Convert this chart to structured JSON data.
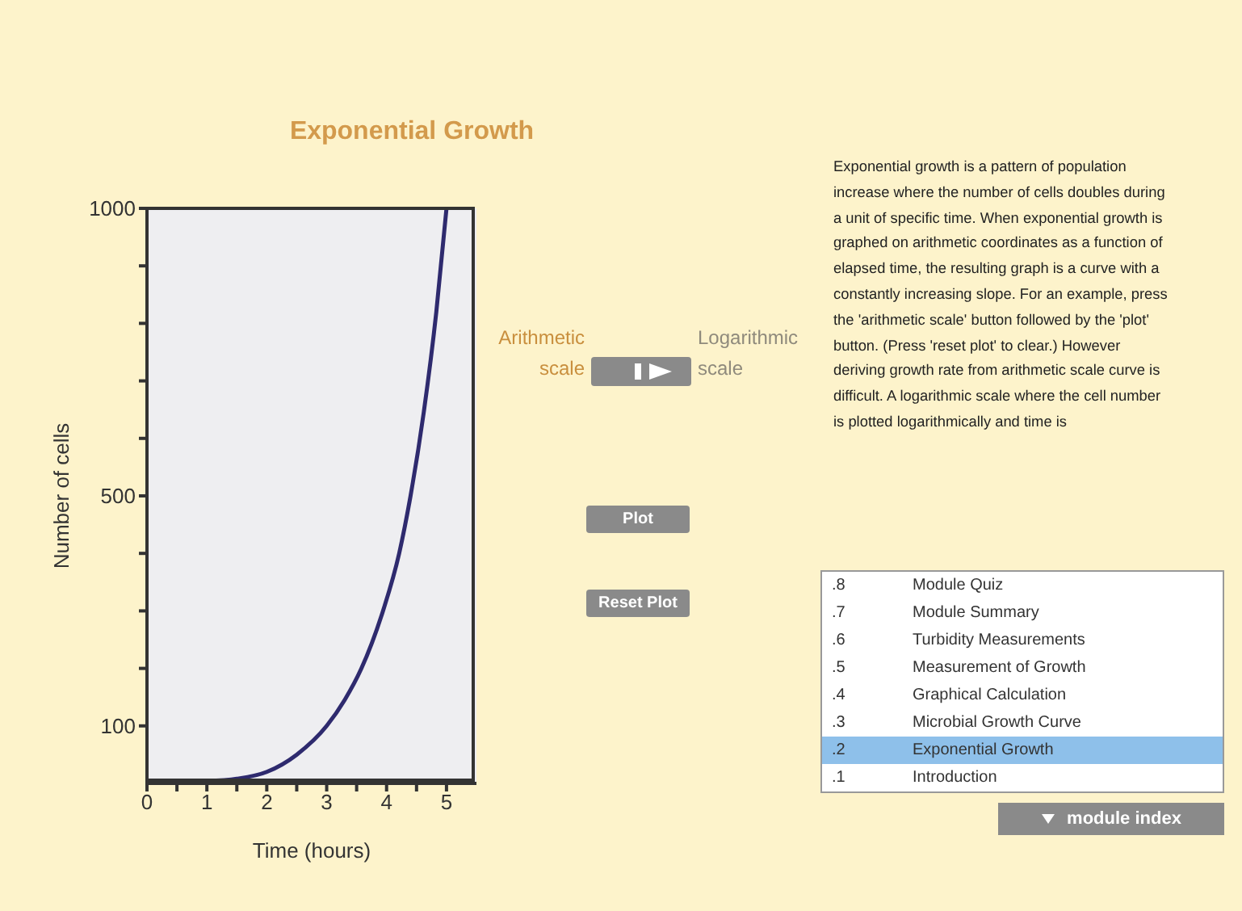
{
  "chart_data": {
    "type": "line",
    "title": "Exponential Growth",
    "xlabel": "Time (hours)",
    "ylabel": "Number of cells",
    "x": [
      0,
      0.5,
      1,
      1.5,
      2,
      2.5,
      3,
      3.3,
      3.58,
      3.94,
      4.21,
      4.4,
      4.62,
      4.83,
      5
    ],
    "series": [
      {
        "color": "#2e2a6e",
        "values": [
          2,
          3,
          4,
          8,
          20,
          50,
          100,
          145,
          200,
          300,
          400,
          500,
          645,
          820,
          1000
        ]
      }
    ],
    "xlim": [
      0,
      5.5
    ],
    "xticks": [
      0,
      {
        "value": 0.5,
        "label": null
      },
      1,
      {
        "value": 1.5,
        "label": null
      },
      2,
      {
        "value": 2.5,
        "label": null
      },
      3,
      {
        "value": 3.5,
        "label": null
      },
      4,
      {
        "value": 4.5,
        "label": null
      },
      5
    ],
    "ylim": [
      0,
      1000
    ],
    "yticks": [
      100,
      {
        "value": 200,
        "label": null
      },
      {
        "value": 300,
        "label": null
      },
      {
        "value": 400,
        "label": null
      },
      500,
      {
        "value": 600,
        "label": null
      },
      {
        "value": 700,
        "label": null
      },
      {
        "value": 800,
        "label": null
      },
      {
        "value": 900,
        "label": null
      },
      1000
    ],
    "grid": false,
    "legend": false,
    "marker": "none",
    "line_style": "solid",
    "annotations": [
      "Arithmetic scale",
      "Logarithmic scale",
      "Plot",
      "Reset Plot",
      "Exponential growth is a pattern of population increase where the number of cells doubles during a unit of specific time. When exponential growth is graphed on arithmetic coordinates as a function of elapsed time, the resulting graph is a curve with a constantly increasing slope. For an example, press the 'arithmetic scale' button followed by the 'plot' button. (Press 'reset plot' to clear.) However deriving growth rate from arithmetic scale curve is difficult. A logarithmic scale where the cell number is plotted logarithmically and time is",
      ".8 Module Quiz",
      ".7 Module Summary",
      ".6 Turbidity Measurements",
      ".5 Measurement of Growth",
      ".4 Graphical Calculation",
      ".3 Microbial Growth Curve",
      ".2 Exponential Growth",
      ".1 Introduction",
      "module index"
    ]
  }
}
